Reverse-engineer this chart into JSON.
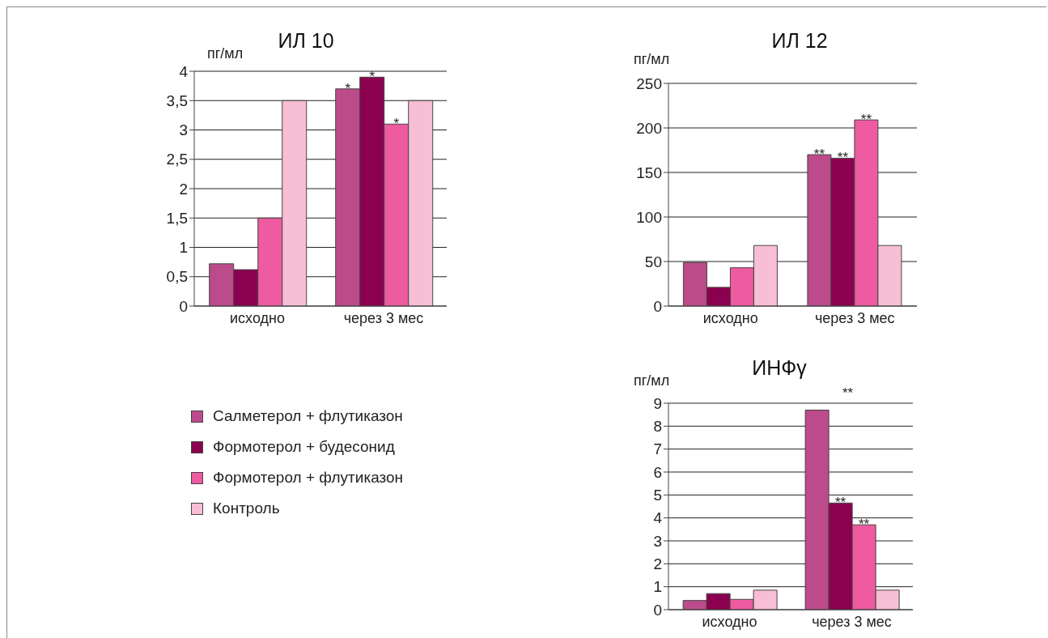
{
  "chart_data": [
    {
      "type": "bar",
      "title": "ИЛ 10",
      "ylabel": "пг/мл",
      "categories": [
        "исходно",
        "через  3 мес"
      ],
      "series": [
        {
          "name": "Салметерол + флутиказон",
          "color": "#bc4b8b",
          "values": [
            0.72,
            3.7
          ]
        },
        {
          "name": "Формотерол + будесонид",
          "color": "#8b004f",
          "values": [
            0.62,
            3.9
          ]
        },
        {
          "name": "Формотерол + флутиказон",
          "color": "#ee5ba0",
          "values": [
            1.5,
            3.1
          ]
        },
        {
          "name": "Контроль",
          "color": "#f7bed6",
          "values": [
            3.5,
            3.5
          ]
        }
      ],
      "ylim": [
        0,
        4
      ],
      "yticks": [
        0,
        {
          "value": 0.5,
          "label": "0,5"
        },
        1,
        {
          "value": 1.5,
          "label": "1,5"
        },
        2,
        {
          "value": 2.5,
          "label": "2,5"
        },
        3,
        {
          "value": 3.5,
          "label": "3,5"
        },
        4
      ],
      "grid": "y",
      "legend": "bottom left",
      "annotations": [
        {
          "text": "*",
          "x": "через  3 мес",
          "y": 3.7
        },
        {
          "text": "*",
          "x": "через  3 мес",
          "y": 3.9
        },
        {
          "text": "*",
          "x": "через  3 мес",
          "y": 3.1
        }
      ]
    },
    {
      "type": "bar",
      "title": "ИЛ 12",
      "ylabel": "пг/мл",
      "categories": [
        "исходно",
        "через  3 мес"
      ],
      "series": [
        {
          "color": "#bc4b8b",
          "values": [
            49,
            170
          ]
        },
        {
          "color": "#8b004f",
          "values": [
            21,
            166
          ]
        },
        {
          "color": "#ee5ba0",
          "values": [
            43,
            209
          ]
        },
        {
          "color": "#f7bed6",
          "values": [
            68,
            68
          ]
        }
      ],
      "ylim": [
        0,
        250
      ],
      "yticks": [
        0,
        50,
        100,
        150,
        200,
        250
      ],
      "grid": "y",
      "annotations": [
        {
          "text": "**",
          "x": "через  3 мес",
          "y": 170
        },
        {
          "text": "**",
          "x": "через  3 мес",
          "y": 166
        },
        {
          "text": "**",
          "x": "через  3 мес",
          "y": 209
        }
      ]
    },
    {
      "type": "bar",
      "title": "ИНФγ",
      "ylabel": "пг/мл",
      "categories": [
        "исходно",
        "через  3 мес"
      ],
      "series": [
        {
          "color": "#bc4b8b",
          "values": [
            0.4,
            8.7
          ]
        },
        {
          "color": "#8b004f",
          "values": [
            0.7,
            4.65
          ]
        },
        {
          "color": "#ee5ba0",
          "values": [
            0.45,
            3.7
          ]
        },
        {
          "color": "#f7bed6",
          "values": [
            0.85,
            0.85
          ]
        }
      ],
      "ylim": [
        0,
        9
      ],
      "yticks": [
        0,
        1,
        2,
        3,
        4,
        5,
        6,
        7,
        8,
        9
      ],
      "grid": "y",
      "annotations": [
        "**",
        {
          "text": "**",
          "x": "через  3 мес",
          "y": 4.65
        },
        {
          "text": "**",
          "x": "через  3 мес",
          "y": 3.7
        }
      ]
    }
  ]
}
